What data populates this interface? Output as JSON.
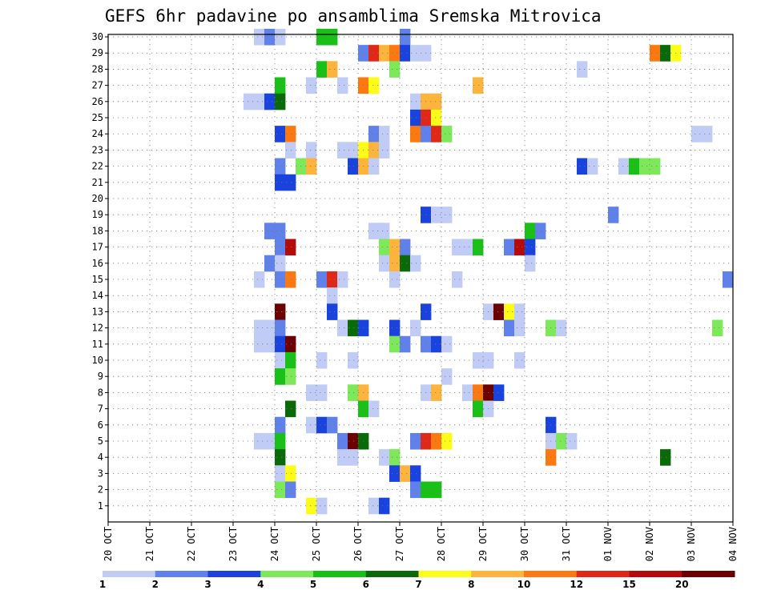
{
  "chart_data": {
    "type": "heatmap",
    "title": "GEFS 6hr padavine po ansamblima Sremska Mitrovica",
    "xlabel": "",
    "ylabel": "",
    "x_tick_labels": [
      "20 OCT",
      "21 OCT",
      "22 OCT",
      "23 OCT",
      "24 OCT",
      "25 OCT",
      "26 OCT",
      "27 OCT",
      "28 OCT",
      "29 OCT",
      "30 OCT",
      "31 OCT",
      "01 NOV",
      "02 NOV",
      "03 NOV",
      "04 NOV"
    ],
    "x_range_steps": [
      0,
      60
    ],
    "steps_per_day": 4,
    "y_tick_labels": [
      "1",
      "2",
      "3",
      "4",
      "5",
      "6",
      "7",
      "8",
      "9",
      "10",
      "11",
      "12",
      "13",
      "14",
      "15",
      "16",
      "17",
      "18",
      "19",
      "20",
      "21",
      "22",
      "23",
      "24",
      "25",
      "26",
      "27",
      "28",
      "29",
      "30"
    ],
    "y_range": [
      0,
      30
    ],
    "grid": true,
    "legend": {
      "position": "bottom",
      "labels": [
        "1",
        "2",
        "3",
        "4",
        "5",
        "6",
        "7",
        "8",
        "10",
        "12",
        "15",
        "20"
      ],
      "colors": [
        "#c0ccf5",
        "#6080ea",
        "#1a42dc",
        "#7ce85a",
        "#18c018",
        "#0a6a0a",
        "#fcfc18",
        "#fcb43c",
        "#fc7810",
        "#e02818",
        "#b40a0a",
        "#6c0000"
      ]
    },
    "color_levels": [
      "#c0ccf5",
      "#6080ea",
      "#1a42dc",
      "#7ce85a",
      "#18c018",
      "#0a6a0a",
      "#fcfc18",
      "#fcb43c",
      "#fc7810",
      "#e02818",
      "#b40a0a",
      "#6c0000"
    ],
    "cells": [
      [
        14,
        30,
        0
      ],
      [
        15,
        30,
        1
      ],
      [
        16,
        30,
        0
      ],
      [
        20,
        30,
        4
      ],
      [
        21,
        30,
        4
      ],
      [
        28,
        30,
        1
      ],
      [
        24,
        29,
        1
      ],
      [
        25,
        29,
        9
      ],
      [
        26,
        29,
        7
      ],
      [
        27,
        29,
        8
      ],
      [
        28,
        29,
        2
      ],
      [
        29,
        29,
        0
      ],
      [
        30,
        29,
        0
      ],
      [
        52,
        29,
        8
      ],
      [
        53,
        29,
        5
      ],
      [
        54,
        29,
        6
      ],
      [
        20,
        28,
        4
      ],
      [
        21,
        28,
        7
      ],
      [
        27,
        28,
        3
      ],
      [
        45,
        28,
        0
      ],
      [
        16,
        27,
        4
      ],
      [
        19,
        27,
        0
      ],
      [
        22,
        27,
        0
      ],
      [
        24,
        27,
        8
      ],
      [
        25,
        27,
        6
      ],
      [
        35,
        27,
        7
      ],
      [
        13,
        26,
        0
      ],
      [
        14,
        26,
        0
      ],
      [
        15,
        26,
        2
      ],
      [
        16,
        26,
        5
      ],
      [
        29,
        26,
        0
      ],
      [
        30,
        26,
        7
      ],
      [
        31,
        26,
        7
      ],
      [
        29,
        25,
        2
      ],
      [
        30,
        25,
        9
      ],
      [
        31,
        25,
        6
      ],
      [
        16,
        24,
        2
      ],
      [
        17,
        24,
        8
      ],
      [
        25,
        24,
        1
      ],
      [
        26,
        24,
        0
      ],
      [
        29,
        24,
        8
      ],
      [
        30,
        24,
        1
      ],
      [
        31,
        24,
        9
      ],
      [
        32,
        24,
        3
      ],
      [
        56,
        24,
        0
      ],
      [
        57,
        24,
        0
      ],
      [
        17,
        23,
        0
      ],
      [
        19,
        23,
        0
      ],
      [
        22,
        23,
        0
      ],
      [
        23,
        23,
        0
      ],
      [
        24,
        23,
        6
      ],
      [
        25,
        23,
        7
      ],
      [
        26,
        23,
        0
      ],
      [
        16,
        22,
        1
      ],
      [
        18,
        22,
        3
      ],
      [
        19,
        22,
        7
      ],
      [
        23,
        22,
        2
      ],
      [
        24,
        22,
        7
      ],
      [
        25,
        22,
        0
      ],
      [
        45,
        22,
        2
      ],
      [
        46,
        22,
        0
      ],
      [
        49,
        22,
        0
      ],
      [
        50,
        22,
        4
      ],
      [
        51,
        22,
        3
      ],
      [
        52,
        22,
        3
      ],
      [
        16,
        21,
        2
      ],
      [
        17,
        21,
        2
      ],
      [
        30,
        19,
        2
      ],
      [
        31,
        19,
        0
      ],
      [
        32,
        19,
        0
      ],
      [
        48,
        19,
        1
      ],
      [
        15,
        18,
        1
      ],
      [
        16,
        18,
        1
      ],
      [
        25,
        18,
        0
      ],
      [
        26,
        18,
        0
      ],
      [
        40,
        18,
        4
      ],
      [
        41,
        18,
        1
      ],
      [
        16,
        17,
        1
      ],
      [
        17,
        17,
        10
      ],
      [
        26,
        17,
        3
      ],
      [
        27,
        17,
        7
      ],
      [
        28,
        17,
        1
      ],
      [
        33,
        17,
        0
      ],
      [
        34,
        17,
        0
      ],
      [
        35,
        17,
        4
      ],
      [
        38,
        17,
        1
      ],
      [
        39,
        17,
        10
      ],
      [
        40,
        17,
        2
      ],
      [
        15,
        16,
        1
      ],
      [
        16,
        16,
        0
      ],
      [
        26,
        16,
        0
      ],
      [
        27,
        16,
        7
      ],
      [
        28,
        16,
        5
      ],
      [
        29,
        16,
        0
      ],
      [
        40,
        16,
        0
      ],
      [
        14,
        15,
        0
      ],
      [
        16,
        15,
        1
      ],
      [
        17,
        15,
        8
      ],
      [
        20,
        15,
        1
      ],
      [
        21,
        15,
        9
      ],
      [
        22,
        15,
        0
      ],
      [
        27,
        15,
        0
      ],
      [
        33,
        15,
        0
      ],
      [
        59,
        15,
        1
      ],
      [
        21,
        14,
        0
      ],
      [
        16,
        13,
        11
      ],
      [
        21,
        13,
        2
      ],
      [
        30,
        13,
        2
      ],
      [
        36,
        13,
        0
      ],
      [
        37,
        13,
        11
      ],
      [
        38,
        13,
        6
      ],
      [
        39,
        13,
        0
      ],
      [
        14,
        12,
        0
      ],
      [
        15,
        12,
        0
      ],
      [
        16,
        12,
        1
      ],
      [
        22,
        12,
        0
      ],
      [
        23,
        12,
        5
      ],
      [
        24,
        12,
        2
      ],
      [
        27,
        12,
        2
      ],
      [
        29,
        12,
        0
      ],
      [
        38,
        12,
        1
      ],
      [
        39,
        12,
        0
      ],
      [
        42,
        12,
        3
      ],
      [
        43,
        12,
        0
      ],
      [
        58,
        12,
        3
      ],
      [
        14,
        11,
        0
      ],
      [
        15,
        11,
        0
      ],
      [
        16,
        11,
        2
      ],
      [
        17,
        11,
        11
      ],
      [
        27,
        11,
        3
      ],
      [
        28,
        11,
        1
      ],
      [
        30,
        11,
        1
      ],
      [
        31,
        11,
        2
      ],
      [
        32,
        11,
        0
      ],
      [
        16,
        10,
        0
      ],
      [
        17,
        10,
        4
      ],
      [
        20,
        10,
        0
      ],
      [
        23,
        10,
        0
      ],
      [
        35,
        10,
        0
      ],
      [
        36,
        10,
        0
      ],
      [
        39,
        10,
        0
      ],
      [
        16,
        9,
        4
      ],
      [
        17,
        9,
        3
      ],
      [
        32,
        9,
        0
      ],
      [
        19,
        8,
        0
      ],
      [
        20,
        8,
        0
      ],
      [
        23,
        8,
        3
      ],
      [
        24,
        8,
        7
      ],
      [
        30,
        8,
        0
      ],
      [
        31,
        8,
        7
      ],
      [
        34,
        8,
        0
      ],
      [
        35,
        8,
        8
      ],
      [
        36,
        8,
        11
      ],
      [
        37,
        8,
        2
      ],
      [
        17,
        7,
        5
      ],
      [
        24,
        7,
        4
      ],
      [
        25,
        7,
        0
      ],
      [
        35,
        7,
        4
      ],
      [
        36,
        7,
        0
      ],
      [
        16,
        6,
        1
      ],
      [
        19,
        6,
        0
      ],
      [
        20,
        6,
        2
      ],
      [
        21,
        6,
        1
      ],
      [
        42,
        6,
        2
      ],
      [
        14,
        5,
        0
      ],
      [
        15,
        5,
        0
      ],
      [
        16,
        5,
        4
      ],
      [
        22,
        5,
        1
      ],
      [
        23,
        5,
        11
      ],
      [
        24,
        5,
        5
      ],
      [
        29,
        5,
        1
      ],
      [
        30,
        5,
        9
      ],
      [
        31,
        5,
        8
      ],
      [
        32,
        5,
        6
      ],
      [
        42,
        5,
        0
      ],
      [
        43,
        5,
        3
      ],
      [
        44,
        5,
        0
      ],
      [
        16,
        4,
        5
      ],
      [
        22,
        4,
        0
      ],
      [
        23,
        4,
        0
      ],
      [
        26,
        4,
        0
      ],
      [
        27,
        4,
        3
      ],
      [
        42,
        4,
        8
      ],
      [
        53,
        4,
        5
      ],
      [
        16,
        3,
        0
      ],
      [
        17,
        3,
        6
      ],
      [
        27,
        3,
        2
      ],
      [
        28,
        3,
        7
      ],
      [
        29,
        3,
        2
      ],
      [
        16,
        2,
        3
      ],
      [
        17,
        2,
        1
      ],
      [
        29,
        2,
        1
      ],
      [
        30,
        2,
        4
      ],
      [
        31,
        2,
        4
      ],
      [
        19,
        1,
        6
      ],
      [
        20,
        1,
        0
      ],
      [
        25,
        1,
        0
      ],
      [
        26,
        1,
        2
      ]
    ]
  }
}
